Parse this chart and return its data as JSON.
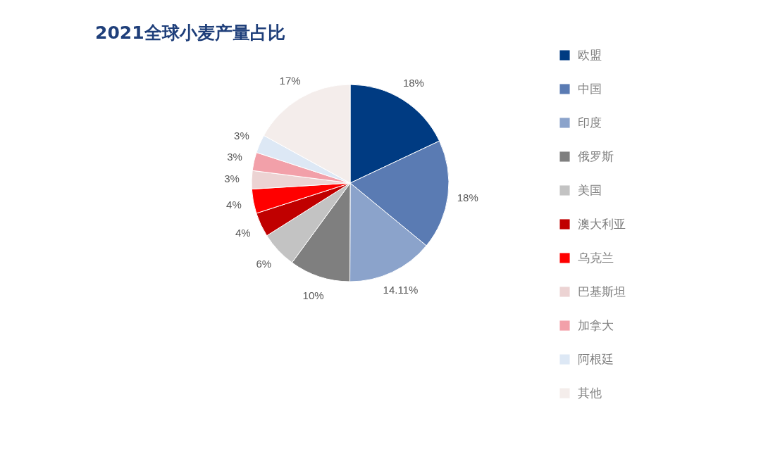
{
  "chart_data": {
    "type": "pie",
    "title": "2021全球小麦产量占比",
    "categories": [
      "欧盟",
      "中国",
      "印度",
      "俄罗斯",
      "美国",
      "澳大利亚",
      "乌克兰",
      "巴基斯坦",
      "加拿大",
      "阿根廷",
      "其他"
    ],
    "values": [
      18,
      18,
      14.11,
      10,
      6,
      4,
      4,
      3,
      3,
      3,
      17
    ],
    "value_labels": [
      "18%",
      "18%",
      "14.11%",
      "10%",
      "6%",
      "4%",
      "4%",
      "3%",
      "3%",
      "3%",
      "17%"
    ],
    "colors": [
      "#003b82",
      "#5a7bb3",
      "#8ba3cb",
      "#7f7f7f",
      "#c3c3c3",
      "#c00000",
      "#ff0000",
      "#ecd3d3",
      "#f2a0a9",
      "#dde8f5",
      "#f4edeb"
    ],
    "legend": "right"
  }
}
